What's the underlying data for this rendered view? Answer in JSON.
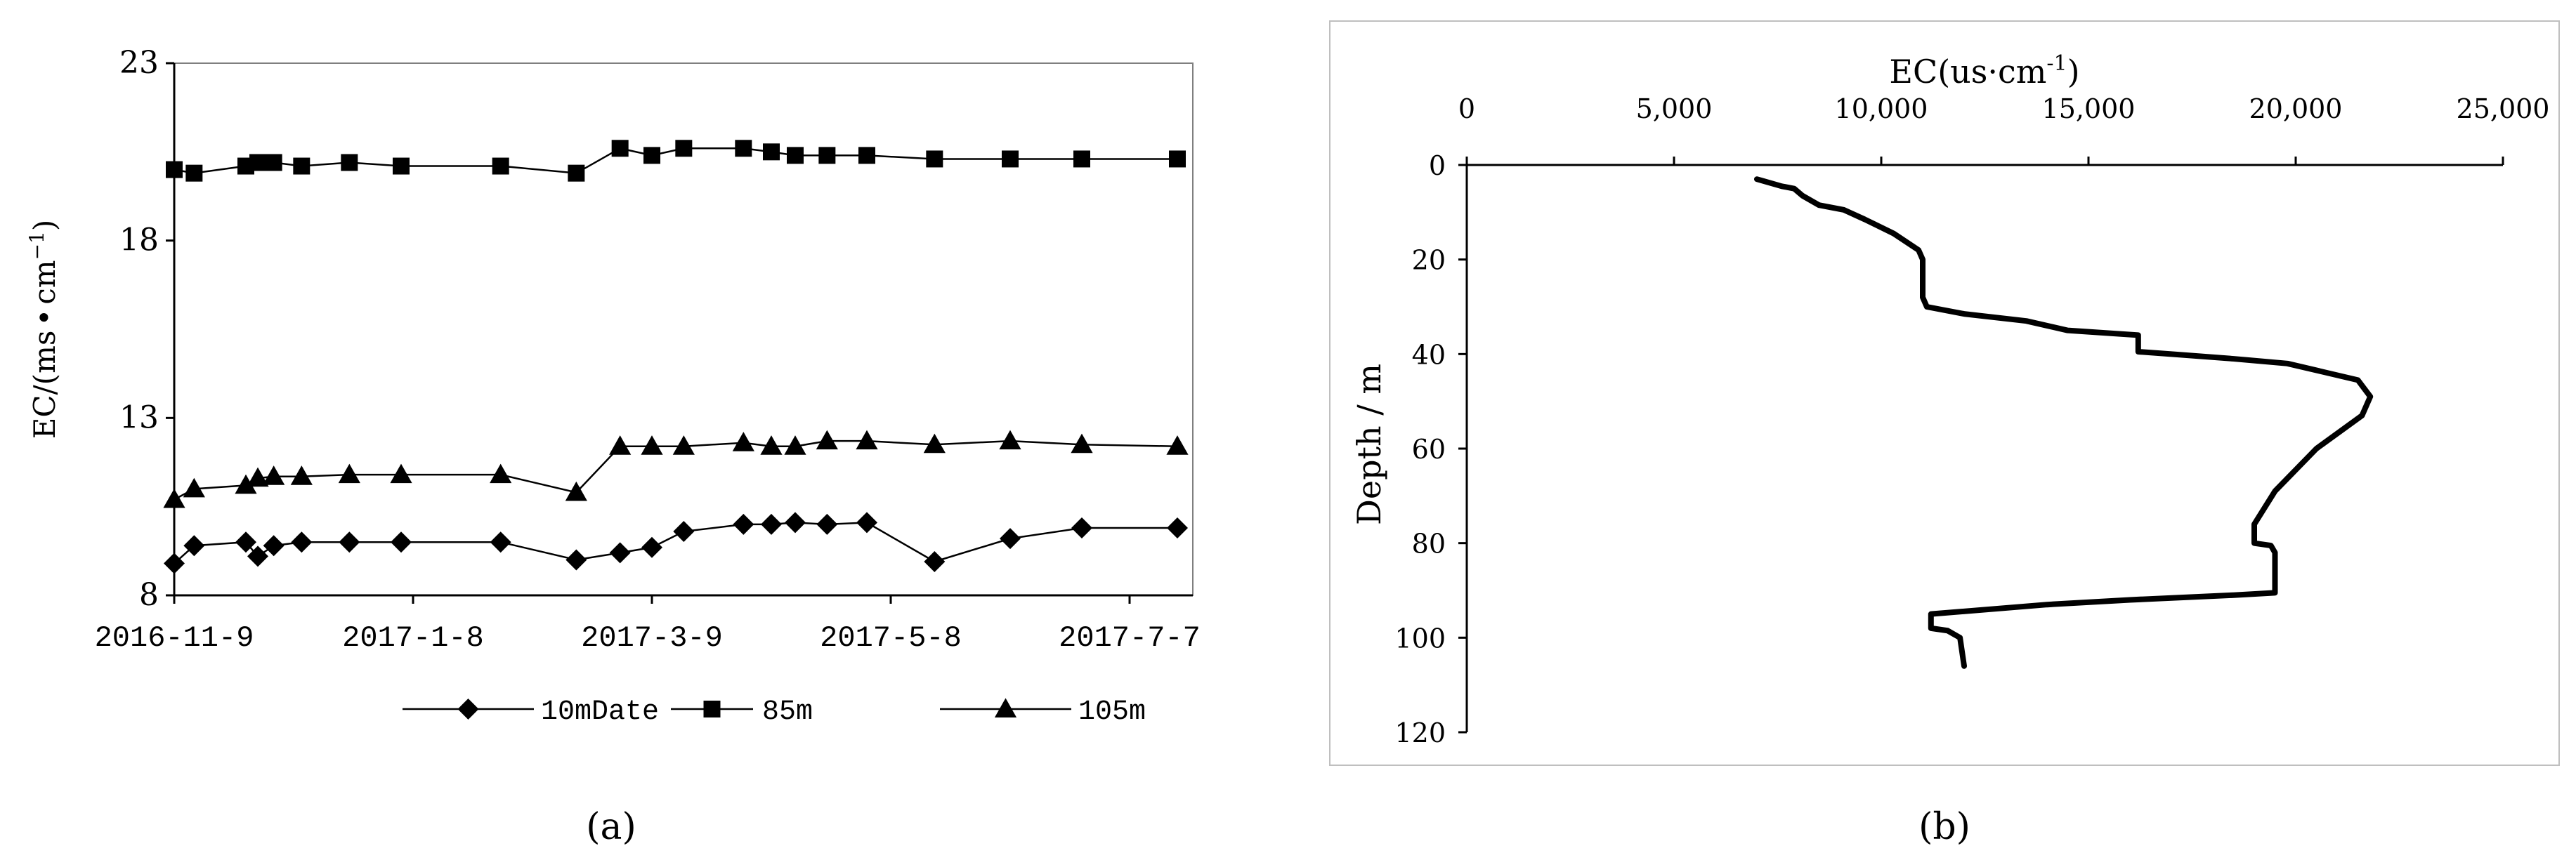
{
  "chart_data": [
    {
      "type": "line",
      "panel_label": "(a)",
      "ylabel": "EC/(ms·cm⁻¹)",
      "ylabel_main": "EC/(ms",
      "ylabel_dot": "•",
      "ylabel_unit": "cm",
      "ylabel_sup": "−1",
      "ylabel_close": ")",
      "ylim": [
        8,
        23
      ],
      "yticks": [
        "8",
        "13",
        "18",
        "23"
      ],
      "ytick_values": [
        8,
        13,
        18,
        23
      ],
      "xlim": [
        "2016-11-09",
        "2017-07-19"
      ],
      "xtick_labels": [
        "2016-11-9",
        "2017-1-8",
        "2017-3-9",
        "2017-5-8",
        "2017-7-7"
      ],
      "xtick_dates": [
        "2016-11-09",
        "2017-01-08",
        "2017-03-09",
        "2017-05-08",
        "2017-07-07"
      ],
      "grid": false,
      "legend_position": "bottom",
      "x": [
        "2016-11-09",
        "2016-11-14",
        "2016-11-27",
        "2016-11-30",
        "2016-12-04",
        "2016-12-11",
        "2016-12-23",
        "2017-01-05",
        "2017-01-30",
        "2017-02-18",
        "2017-03-01",
        "2017-03-09",
        "2017-03-17",
        "2017-04-01",
        "2017-04-08",
        "2017-04-14",
        "2017-04-22",
        "2017-05-02",
        "2017-05-19",
        "2017-06-07",
        "2017-06-25",
        "2017-07-19"
      ],
      "series": [
        {
          "name": "10mDate",
          "marker": "diamond",
          "values": [
            8.9,
            9.4,
            9.5,
            9.1,
            9.4,
            9.5,
            9.5,
            9.5,
            9.5,
            9.0,
            9.2,
            9.35,
            9.8,
            10.0,
            10.0,
            10.05,
            10.0,
            10.05,
            8.95,
            9.6,
            9.9,
            9.9
          ]
        },
        {
          "name": "85m",
          "marker": "square",
          "values": [
            20.0,
            19.9,
            20.1,
            20.2,
            20.2,
            20.1,
            20.2,
            20.1,
            20.1,
            19.9,
            20.6,
            20.4,
            20.6,
            20.6,
            20.5,
            20.4,
            20.4,
            20.4,
            20.3,
            20.3,
            20.3,
            20.3
          ]
        },
        {
          "name": "105m",
          "marker": "triangle",
          "values": [
            10.7,
            11.0,
            11.1,
            11.3,
            11.35,
            11.35,
            11.4,
            11.4,
            11.4,
            10.9,
            12.2,
            12.2,
            12.2,
            12.3,
            12.2,
            12.2,
            12.35,
            12.35,
            12.25,
            12.35,
            12.25,
            12.2
          ]
        }
      ]
    },
    {
      "type": "line",
      "panel_label": "(b)",
      "title": "EC(us·cm⁻¹)",
      "title_main": "EC(us·cm",
      "title_sup": "-1",
      "title_close": ")",
      "xlabel": "EC(us·cm⁻¹)",
      "ylabel": "Depth / m",
      "x_axis_position": "top",
      "y_inverted": true,
      "xlim": [
        0,
        25000
      ],
      "xticks": [
        "0",
        "5,000",
        "10,000",
        "15,000",
        "20,000",
        "25,000"
      ],
      "xtick_values": [
        0,
        5000,
        10000,
        15000,
        20000,
        25000
      ],
      "ylim": [
        0,
        120
      ],
      "yticks": [
        "0",
        "20",
        "40",
        "60",
        "80",
        "100",
        "120"
      ],
      "ytick_values": [
        0,
        20,
        40,
        60,
        80,
        100,
        120
      ],
      "grid": false,
      "series": [
        {
          "name": "",
          "x": [
            7000,
            7600,
            7900,
            8100,
            8500,
            9100,
            9600,
            10300,
            10900,
            11000,
            11000,
            11100,
            12000,
            13500,
            14500,
            16200,
            16200,
            17000,
            18500,
            19800,
            21500,
            21800,
            21600,
            20500,
            19500,
            19000,
            19000,
            19400,
            19500,
            19500,
            18500,
            16000,
            14000,
            11200,
            11200,
            11600,
            11900,
            12000
          ],
          "y": [
            3,
            4.5,
            5,
            6.5,
            8.5,
            9.5,
            11.5,
            14.5,
            18,
            20,
            28,
            30,
            31.5,
            33,
            35,
            36,
            39.5,
            40,
            41,
            42,
            45.5,
            49,
            53,
            60,
            69,
            76,
            80,
            80.5,
            82,
            90.5,
            91,
            92,
            93,
            95,
            98,
            98.5,
            100,
            106
          ]
        }
      ]
    }
  ]
}
